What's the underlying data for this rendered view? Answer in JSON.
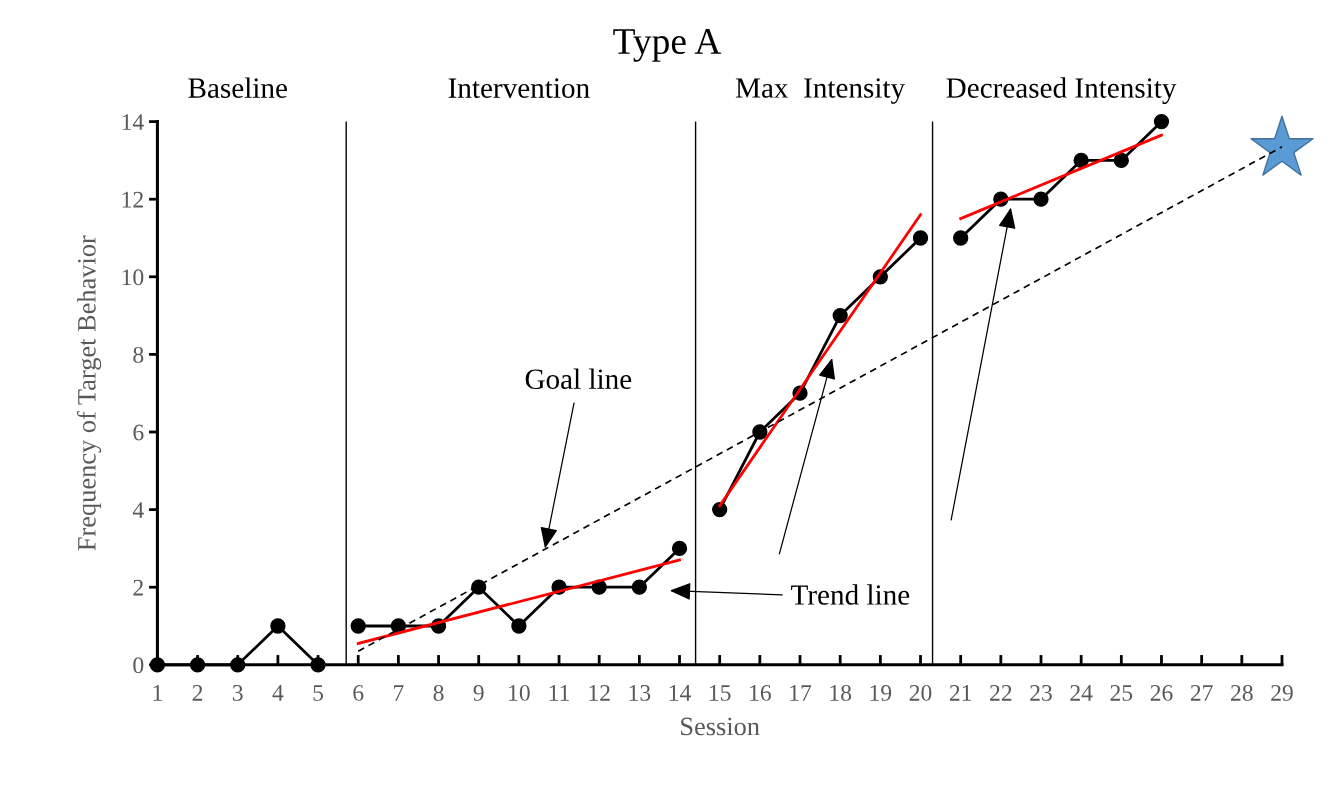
{
  "chart_data": {
    "type": "line",
    "title": "Type A",
    "xlabel": "Session",
    "ylabel": "Frequency of Target Behavior",
    "xlim": [
      1,
      29
    ],
    "xticks": [
      1,
      2,
      3,
      4,
      5,
      6,
      7,
      8,
      9,
      10,
      11,
      12,
      13,
      14,
      15,
      16,
      17,
      18,
      19,
      20,
      21,
      22,
      23,
      24,
      25,
      26,
      27,
      28,
      29
    ],
    "ylim": [
      0,
      14
    ],
    "yticks": [
      0,
      2,
      4,
      6,
      8,
      10,
      12,
      14
    ],
    "series": [
      {
        "color": "#000000",
        "marker": "circle",
        "line_style": "solid",
        "x": [
          1,
          2,
          3,
          4,
          5
        ],
        "values": [
          0,
          0,
          0,
          1,
          0
        ]
      },
      {
        "color": "#000000",
        "marker": "circle",
        "line_style": "solid",
        "x": [
          6,
          7,
          8,
          9,
          10,
          11,
          12,
          13,
          14
        ],
        "values": [
          1,
          1,
          1,
          2,
          1,
          2,
          2,
          2,
          3
        ]
      },
      {
        "color": "#000000",
        "marker": "circle",
        "line_style": "solid",
        "x": [
          15,
          16,
          17,
          18,
          19,
          20
        ],
        "values": [
          4,
          6,
          7,
          9,
          10,
          11
        ]
      },
      {
        "color": "#000000",
        "marker": "circle",
        "line_style": "solid",
        "x": [
          21,
          22,
          23,
          24,
          25,
          26
        ],
        "values": [
          11,
          12,
          12,
          13,
          13,
          14
        ]
      },
      {
        "color": "#ff0000",
        "marker": "none",
        "line_style": "solid",
        "x": [
          6,
          14
        ],
        "values": [
          0.55,
          2.7
        ]
      },
      {
        "color": "#ff0000",
        "marker": "none",
        "line_style": "solid",
        "x": [
          15,
          20
        ],
        "values": [
          4.1,
          11.6
        ]
      },
      {
        "color": "#ff0000",
        "marker": "none",
        "line_style": "solid",
        "x": [
          21,
          26
        ],
        "values": [
          11.5,
          13.65
        ]
      },
      {
        "color": "#000000",
        "marker": "none",
        "line_style": "dashed",
        "x": [
          6,
          29
        ],
        "values": [
          0.35,
          13.35
        ]
      },
      {
        "type": "scatter",
        "color": "#5b9bd5",
        "marker": "star",
        "x": [
          29
        ],
        "values": [
          13.3
        ]
      }
    ],
    "ref_lines": [
      {
        "axis": "x",
        "value": 5.7,
        "color": "#000000"
      },
      {
        "axis": "x",
        "value": 14.4,
        "color": "#000000"
      },
      {
        "axis": "x",
        "value": 20.3,
        "color": "#000000"
      }
    ],
    "annotations": [
      "Baseline",
      "Intervention",
      "Max  Intensity",
      "Decreased Intensity",
      {
        "text": "Goal line",
        "x": 10.65,
        "y": 3.0
      },
      "Trend line"
    ]
  }
}
